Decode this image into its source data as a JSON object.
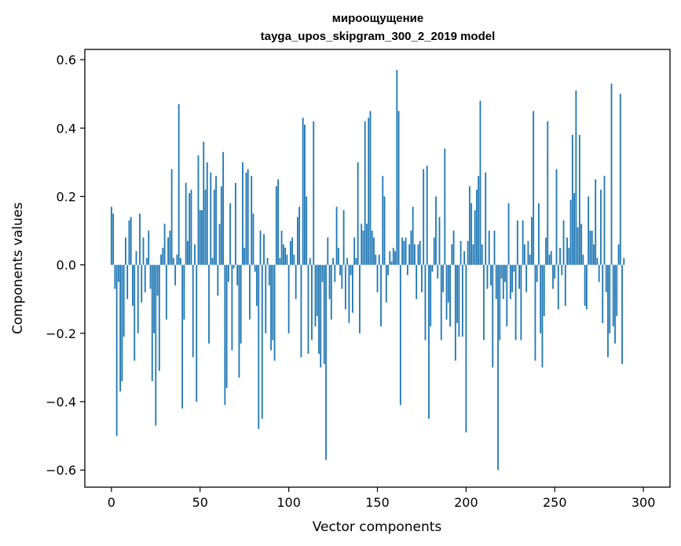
{
  "chart_data": {
    "type": "bar",
    "title": "мироощущение",
    "subtitle": "tayga_upos_skipgram_300_2_2019 model",
    "xlabel": "Vector components",
    "ylabel": "Components values",
    "xlim": [
      -15,
      315
    ],
    "ylim": [
      -0.65,
      0.63
    ],
    "xticks": [
      0,
      50,
      100,
      150,
      200,
      250,
      300
    ],
    "xtick_labels": [
      "0",
      "50",
      "100",
      "150",
      "200",
      "250",
      "300"
    ],
    "yticks": [
      -0.6,
      -0.4,
      -0.2,
      0.0,
      0.2,
      0.4,
      0.6
    ],
    "ytick_labels": [
      "−0.6",
      "−0.4",
      "−0.2",
      "0.0",
      "0.2",
      "0.4",
      "0.6"
    ],
    "grid": false,
    "bar_color": "#1f77b4",
    "values": [
      0.17,
      0.15,
      -0.07,
      -0.5,
      -0.05,
      -0.37,
      -0.34,
      -0.21,
      0.08,
      -0.1,
      0.13,
      0.14,
      -0.12,
      -0.28,
      0.04,
      -0.2,
      0.15,
      -0.11,
      0.08,
      -0.08,
      0.02,
      0.1,
      -0.07,
      -0.34,
      -0.2,
      -0.47,
      -0.09,
      -0.31,
      0.03,
      0.05,
      0.12,
      -0.16,
      0.08,
      0.1,
      0.28,
      0.02,
      -0.06,
      0.03,
      0.47,
      0.02,
      -0.42,
      -0.16,
      0.24,
      0.07,
      0.21,
      0.22,
      -0.27,
      0.06,
      -0.4,
      0.32,
      0.16,
      0.16,
      0.36,
      0.22,
      0.3,
      -0.23,
      0.27,
      0.02,
      0.22,
      0.26,
      -0.09,
      0.12,
      0.23,
      0.33,
      -0.41,
      -0.36,
      -0.05,
      0.18,
      -0.25,
      -0.01,
      0.24,
      -0.06,
      -0.33,
      -0.23,
      0.3,
      0.05,
      0.27,
      0.28,
      -0.16,
      0.26,
      0.15,
      -0.02,
      -0.12,
      -0.48,
      0.1,
      -0.45,
      0.09,
      -0.2,
      0.02,
      -0.06,
      -0.25,
      -0.22,
      -0.28,
      0.23,
      0.25,
      0.02,
      0.1,
      0.06,
      0.05,
      0.03,
      -0.2,
      0.07,
      0.08,
      0.03,
      -0.1,
      0.14,
      0.17,
      -0.27,
      0.43,
      0.41,
      0.2,
      -0.26,
      0.02,
      -0.22,
      0.42,
      -0.18,
      -0.15,
      -0.26,
      -0.3,
      -0.05,
      -0.29,
      -0.57,
      0.08,
      -0.1,
      -0.16,
      0.02,
      -0.05,
      0.17,
      0.05,
      -0.03,
      -0.07,
      0.16,
      -0.13,
      0.02,
      -0.17,
      -0.03,
      -0.14,
      0.08,
      0.02,
      0.3,
      -0.2,
      0.12,
      0.1,
      0.42,
      0.12,
      0.43,
      0.45,
      0.1,
      0.08,
      0.03,
      -0.08,
      0.03,
      -0.18,
      0.26,
      0.2,
      -0.11,
      -0.03,
      0.04,
      0.01,
      0.05,
      0.04,
      0.57,
      0.45,
      -0.41,
      0.08,
      0.07,
      0.08,
      -0.03,
      0.06,
      0.1,
      0.17,
      0.06,
      -0.1,
      0.06,
      0.07,
      -0.08,
      0.28,
      -0.22,
      0.29,
      -0.45,
      -0.18,
      -0.02,
      0.08,
      0.2,
      -0.04,
      0.14,
      -0.22,
      -0.08,
      0.34,
      -0.16,
      -0.11,
      -0.18,
      0.06,
      0.1,
      -0.28,
      -0.17,
      -0.21,
      0.07,
      -0.21,
      0.04,
      -0.49,
      0.07,
      0.23,
      0.18,
      0.06,
      0.16,
      0.22,
      0.26,
      0.48,
      0.06,
      -0.22,
      0.27,
      -0.07,
      0.1,
      -0.06,
      -0.3,
      0.1,
      -0.1,
      -0.6,
      -0.22,
      -0.04,
      -0.1,
      -0.05,
      -0.18,
      0.18,
      -0.1,
      -0.08,
      -0.02,
      -0.22,
      0.13,
      -0.07,
      -0.22,
      0.13,
      0.06,
      -0.08,
      0.07,
      0.03,
      0.14,
      0.45,
      -0.28,
      -0.05,
      0.18,
      -0.2,
      -0.3,
      -0.15,
      0.08,
      0.42,
      0.03,
      0.04,
      -0.07,
      -0.04,
      0.28,
      -0.13,
      0.05,
      -0.03,
      0.13,
      -0.12,
      0.08,
      0.05,
      0.19,
      0.38,
      0.21,
      0.51,
      0.11,
      0.38,
      0.12,
      0.03,
      -0.12,
      -0.13,
      0.2,
      0.1,
      0.1,
      0.06,
      0.25,
      0.02,
      -0.05,
      0.22,
      -0.17,
      0.26,
      -0.08,
      -0.27,
      -0.2,
      0.53,
      -0.18,
      -0.23,
      -0.15,
      0.06,
      0.5,
      -0.29,
      0.02
    ]
  }
}
